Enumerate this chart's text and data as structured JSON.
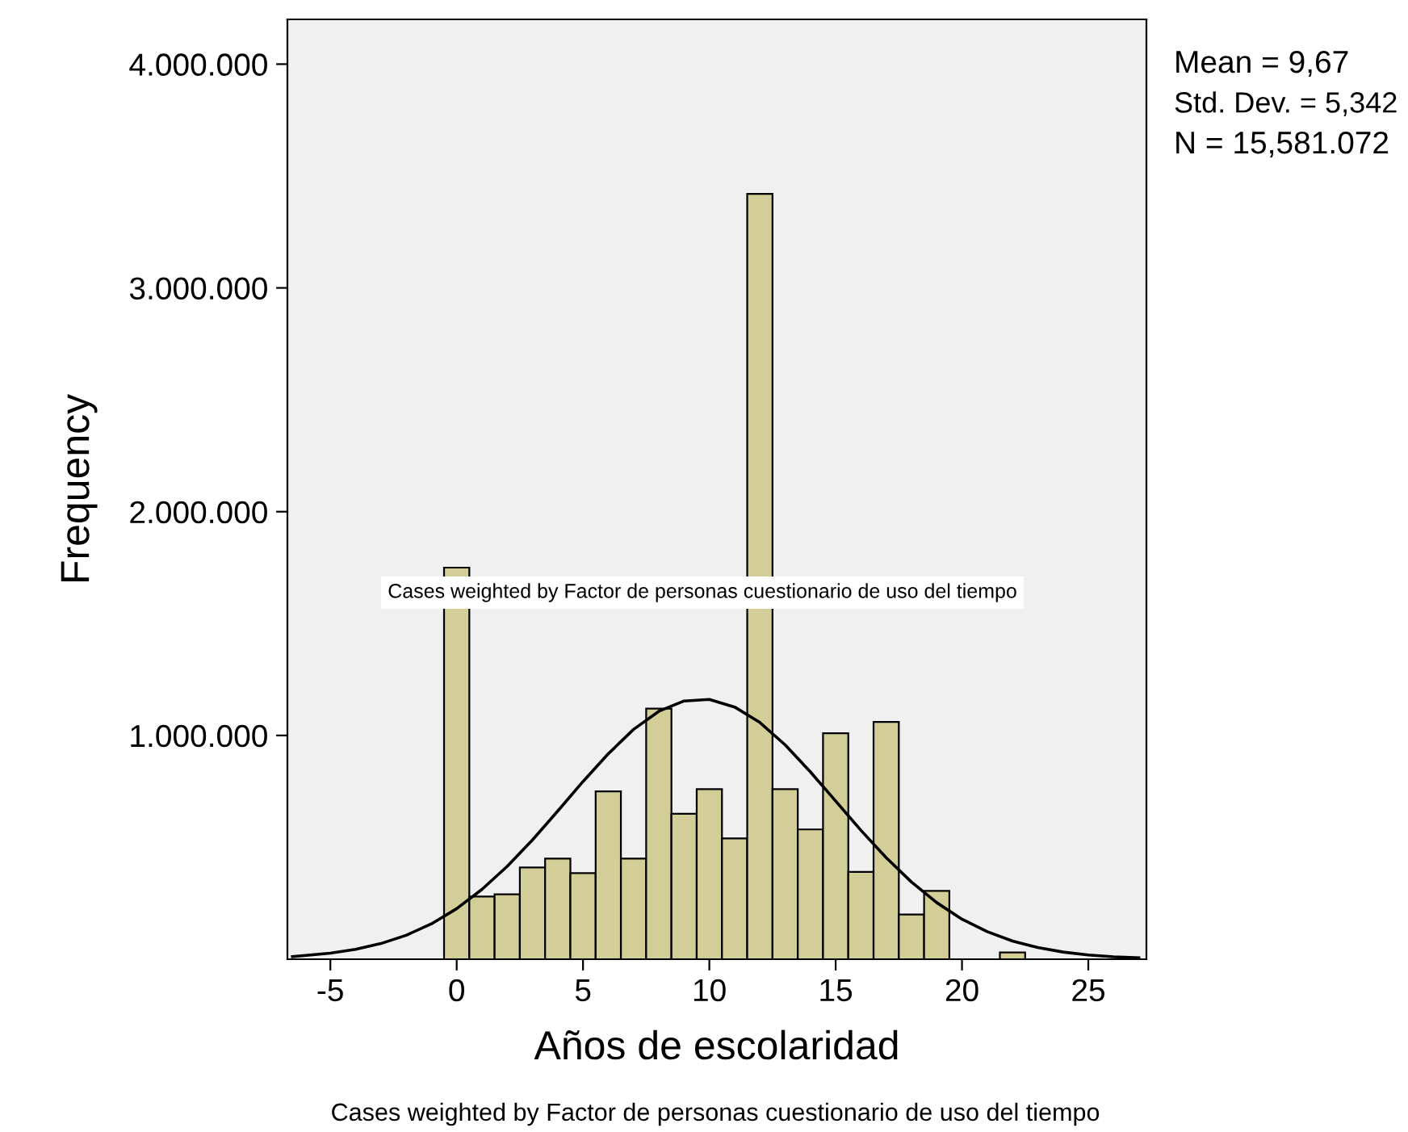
{
  "chart_data": {
    "type": "histogram",
    "xlabel": "Años de escolaridad",
    "ylabel": "Frequency",
    "bins": [
      -0.5,
      0.5,
      1.5,
      2.5,
      3.5,
      4.5,
      5.5,
      6.5,
      7.5,
      8.5,
      9.5,
      10.5,
      11.5,
      12.5,
      13.5,
      14.5,
      15.5,
      16.5,
      17.5,
      18.5,
      19.5,
      20.5,
      21.5,
      22.5
    ],
    "values": [
      1750000,
      280000,
      290000,
      410000,
      450000,
      385000,
      750000,
      450000,
      1120000,
      650000,
      760000,
      540000,
      3420000,
      760000,
      580000,
      1010000,
      390000,
      1060000,
      200000,
      305000,
      0,
      0,
      30000
    ],
    "color": "#d3ce97",
    "series": [
      {
        "type": "line",
        "color": "#000000",
        "x": [
          -6.5,
          -5,
          -4,
          -3,
          -2,
          -1,
          0,
          1,
          2,
          3,
          4,
          5,
          6,
          7,
          8,
          9,
          10,
          11,
          12,
          13,
          14,
          15,
          16,
          17,
          18,
          19,
          20,
          21,
          22,
          23,
          24,
          25,
          26,
          27
        ],
        "values": [
          12000,
          27000,
          44000,
          70000,
          107000,
          158000,
          226000,
          312000,
          415000,
          533000,
          662000,
          794000,
          918000,
          1027000,
          1108000,
          1154000,
          1161000,
          1127000,
          1058000,
          958000,
          837000,
          707000,
          576000,
          454000,
          345000,
          253000,
          179000,
          123000,
          81000,
          52000,
          32000,
          19000,
          11000,
          6000
        ]
      }
    ],
    "xlim": [
      -6.7,
      27.3
    ],
    "xticks": [
      -5,
      0,
      5,
      10,
      15,
      20,
      25
    ],
    "ylim": [
      0,
      4200000
    ],
    "yticks": [
      {
        "value": 1000000,
        "label": "1.000.000"
      },
      {
        "value": 2000000,
        "label": "2.000.000"
      },
      {
        "value": 3000000,
        "label": "3.000.000"
      },
      {
        "value": 4000000,
        "label": "4.000.000"
      }
    ],
    "annotations": [
      "Mean = 9,67",
      "Std. Dev. = 5,342",
      "N = 15,581.072",
      "Cases weighted by Factor de personas cuestionario de uso del tiempo",
      "Cases weighted by Factor de personas cuestionario de uso del tiempo"
    ]
  }
}
